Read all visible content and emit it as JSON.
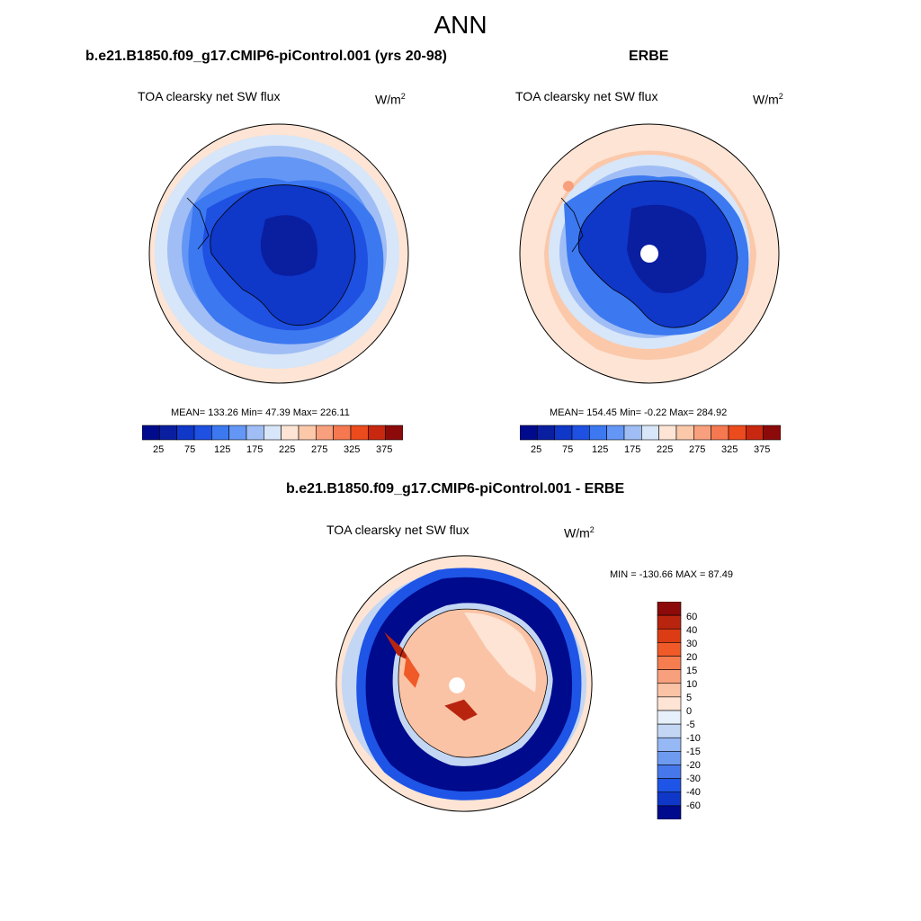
{
  "main_title": "ANN",
  "panels": [
    {
      "title": "b.e21.B1850.f09_g17.CMIP6-piControl.001 (yrs 20-98)",
      "variable": "TOA clearsky net SW flux",
      "units_base": "W/m",
      "units_exp": "2",
      "stats": "MEAN= 133.26  Min=  47.39  Max= 226.11",
      "mean": 133.26,
      "min": 47.39,
      "max": 226.11
    },
    {
      "title": "ERBE",
      "variable": "TOA clearsky net SW flux",
      "units_base": "W/m",
      "units_exp": "2",
      "stats": "MEAN= 154.45  Min=  -0.22  Max= 284.92",
      "mean": 154.45,
      "min": -0.22,
      "max": 284.92
    },
    {
      "title": "b.e21.B1850.f09_g17.CMIP6-piControl.001 - ERBE",
      "variable": "TOA clearsky net SW flux",
      "units_base": "W/m",
      "units_exp": "2",
      "stats": "MIN = -130.66 MAX =  87.49",
      "min": -130.66,
      "max": 87.49
    }
  ],
  "colorbar_abs": {
    "tick_labels": [
      "25",
      "75",
      "125",
      "175",
      "225",
      "275",
      "325",
      "375"
    ],
    "colors": [
      "#000a8c",
      "#0a1ea0",
      "#0f37c8",
      "#1e50e1",
      "#3c78f0",
      "#6496f5",
      "#a0bef5",
      "#d7e6f8",
      "#fde4d4",
      "#fbc8aa",
      "#f8a07d",
      "#f57850",
      "#ec4b1e",
      "#c8280f",
      "#8c0a0a"
    ]
  },
  "colorbar_diff": {
    "tick_labels": [
      "60",
      "40",
      "30",
      "20",
      "15",
      "10",
      "5",
      "0",
      "-5",
      "-10",
      "-15",
      "-20",
      "-30",
      "-40",
      "-60"
    ],
    "colors": [
      "#8c0a0a",
      "#b9240f",
      "#dc3c14",
      "#f05a28",
      "#f57d50",
      "#f8a07d",
      "#fbc3a5",
      "#fde4d4",
      "#e6f0fa",
      "#c3d7f5",
      "#96b9f5",
      "#6e9bf0",
      "#4678eb",
      "#1e55e6",
      "#0f37c8",
      "#000a8c"
    ]
  }
}
